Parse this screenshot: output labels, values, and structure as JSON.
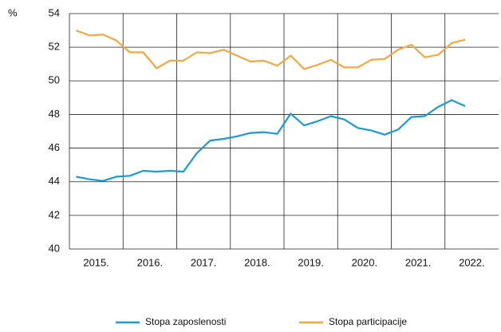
{
  "chart_data": {
    "type": "line",
    "ylabel": "%",
    "categories": [
      "2015.",
      null,
      null,
      null,
      "2016.",
      null,
      null,
      null,
      "2017.",
      null,
      null,
      null,
      "2018.",
      null,
      null,
      null,
      "2019.",
      null,
      null,
      null,
      "2020.",
      null,
      null,
      null,
      "2021.",
      null,
      null,
      null,
      "2022.",
      null,
      null,
      null
    ],
    "series": [
      {
        "name": "Stopa zaposlenosti",
        "color": "#1a9ad6",
        "values": [
          44.3,
          44.15,
          44.05,
          44.3,
          44.35,
          44.65,
          44.6,
          44.65,
          44.6,
          45.7,
          46.45,
          46.55,
          46.7,
          46.9,
          46.95,
          46.85,
          48.05,
          47.35,
          47.6,
          47.9,
          47.7,
          47.2,
          47.05,
          46.8,
          47.1,
          47.85,
          47.9,
          48.45,
          48.85,
          48.5,
          null,
          null
        ]
      },
      {
        "name": "Stopa participacije",
        "color": "#f5a742",
        "values": [
          53.0,
          52.7,
          52.75,
          52.4,
          51.7,
          51.7,
          50.75,
          51.2,
          51.2,
          51.7,
          51.65,
          51.85,
          51.5,
          51.15,
          51.2,
          50.9,
          51.5,
          50.7,
          50.95,
          51.25,
          50.8,
          50.8,
          51.25,
          51.3,
          51.85,
          52.15,
          51.4,
          51.55,
          52.25,
          52.45,
          null,
          null
        ]
      }
    ],
    "ylim": [
      40,
      54
    ],
    "yticks": [
      40,
      42,
      44,
      46,
      48,
      50,
      52,
      54
    ],
    "grid": true
  }
}
